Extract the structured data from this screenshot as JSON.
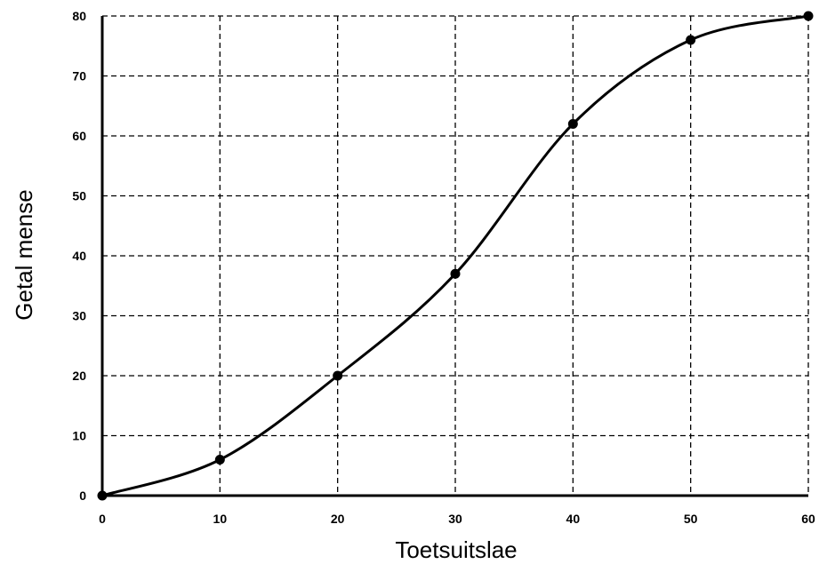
{
  "chart_data": {
    "type": "line",
    "title": "",
    "xlabel": "Toetsuitslae",
    "ylabel": "Getal mense",
    "xlim": [
      0,
      60
    ],
    "ylim": [
      0,
      80
    ],
    "x_ticks": [
      "0",
      "10",
      "20",
      "30",
      "40",
      "50",
      "60"
    ],
    "y_ticks": [
      "0",
      "10",
      "20",
      "30",
      "40",
      "50",
      "60",
      "70",
      "80"
    ],
    "grid": true,
    "grid_style": "dashed",
    "series": [
      {
        "x": [
          0,
          10,
          20,
          30,
          40,
          50,
          60
        ],
        "values": [
          0,
          6,
          20,
          37,
          62,
          76,
          80
        ],
        "color": "#000000",
        "markers": true,
        "smooth": true
      }
    ]
  }
}
